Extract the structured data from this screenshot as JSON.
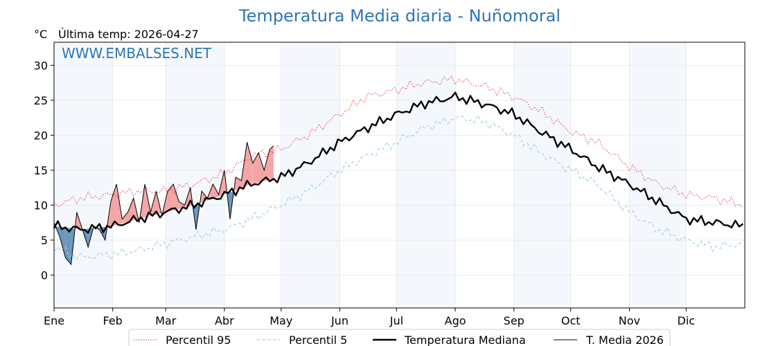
{
  "header": {
    "title": "Temperatura Media diaria - Nuñomoral",
    "unit": "°C",
    "last_temp": "Última temp: 2026-04-27",
    "watermark": "WWW.EMBALSES.NET"
  },
  "chart_data": {
    "type": "line",
    "title": "Temperatura Media diaria - Nuñomoral",
    "xlabel": "",
    "ylabel": "°C",
    "ylim": [
      -4.7,
      33.3
    ],
    "yticks": [
      0,
      5,
      10,
      15,
      20,
      25,
      30
    ],
    "grid": true,
    "legend_position": "bottom",
    "month_labels": [
      "Ene",
      "Feb",
      "Mar",
      "Abr",
      "May",
      "Jun",
      "Jul",
      "Ago",
      "Sep",
      "Oct",
      "Nov",
      "Dic"
    ],
    "month_start_day": [
      1,
      32,
      60,
      91,
      121,
      152,
      182,
      213,
      244,
      274,
      305,
      335
    ],
    "shaded_months": [
      "Ene",
      "Mar",
      "May",
      "Jul",
      "Sep",
      "Nov"
    ],
    "x_unit": "día del año",
    "days_in_year": 365,
    "fill_colors": {
      "above_median": "#f4a5a5",
      "below_median": "#6c96bd"
    },
    "series": [
      {
        "name": "Percentil 95",
        "style": "dotted",
        "color": "#e8232a",
        "x": [
          1,
          15,
          32,
          45,
          60,
          75,
          91,
          105,
          121,
          135,
          152,
          166,
          182,
          196,
          213,
          228,
          244,
          258,
          274,
          288,
          305,
          320,
          335,
          350,
          365
        ],
        "y": [
          10.0,
          11.0,
          11.5,
          12.0,
          12.0,
          13.0,
          14.5,
          17.0,
          18.0,
          20.0,
          23.0,
          25.5,
          26.5,
          27.5,
          28.0,
          27.0,
          25.5,
          23.5,
          20.5,
          19.0,
          15.5,
          13.0,
          11.5,
          11.0,
          10.0
        ]
      },
      {
        "name": "Percentil 5",
        "style": "dashed",
        "color": "#a6d3e3",
        "x": [
          1,
          15,
          32,
          45,
          60,
          75,
          91,
          105,
          121,
          135,
          152,
          166,
          182,
          196,
          213,
          228,
          244,
          258,
          274,
          288,
          305,
          320,
          335,
          350,
          365
        ],
        "y": [
          4.0,
          2.5,
          3.0,
          3.5,
          4.5,
          5.5,
          6.5,
          8.0,
          10.0,
          12.0,
          15.0,
          17.0,
          19.0,
          21.0,
          22.5,
          22.0,
          20.0,
          17.5,
          15.0,
          13.0,
          9.0,
          6.5,
          5.0,
          4.0,
          4.5
        ]
      },
      {
        "name": "Temperatura Mediana",
        "style": "solid-thick",
        "color": "#000000",
        "x": [
          1,
          15,
          32,
          45,
          60,
          75,
          91,
          105,
          121,
          135,
          152,
          166,
          182,
          196,
          213,
          228,
          244,
          258,
          274,
          288,
          305,
          320,
          335,
          350,
          365
        ],
        "y": [
          7.0,
          6.5,
          7.0,
          8.0,
          9.0,
          10.0,
          11.5,
          13.0,
          14.0,
          16.0,
          19.0,
          21.0,
          23.0,
          24.5,
          25.5,
          24.5,
          23.0,
          20.5,
          18.0,
          15.5,
          13.0,
          10.5,
          8.0,
          7.5,
          7.0
        ]
      },
      {
        "name": "T. Media 2026",
        "style": "solid-thin",
        "color": "#000000",
        "x": [
          1,
          4,
          7,
          10,
          13,
          16,
          19,
          22,
          25,
          28,
          31,
          34,
          37,
          40,
          43,
          46,
          49,
          52,
          55,
          58,
          61,
          64,
          67,
          70,
          73,
          76,
          79,
          82,
          85,
          88,
          91,
          94,
          97,
          100,
          103,
          106,
          109,
          112,
          115,
          117
        ],
        "y": [
          7.5,
          5.5,
          2.5,
          1.5,
          9.0,
          6.5,
          4.0,
          7.0,
          6.5,
          5.0,
          10.5,
          13.0,
          8.0,
          9.0,
          11.0,
          7.5,
          13.0,
          9.0,
          12.0,
          8.5,
          12.0,
          13.0,
          10.5,
          10.0,
          12.5,
          6.5,
          12.0,
          11.0,
          13.0,
          11.5,
          15.0,
          8.0,
          14.0,
          13.5,
          19.0,
          16.0,
          17.5,
          15.0,
          18.0,
          18.5
        ]
      }
    ]
  }
}
